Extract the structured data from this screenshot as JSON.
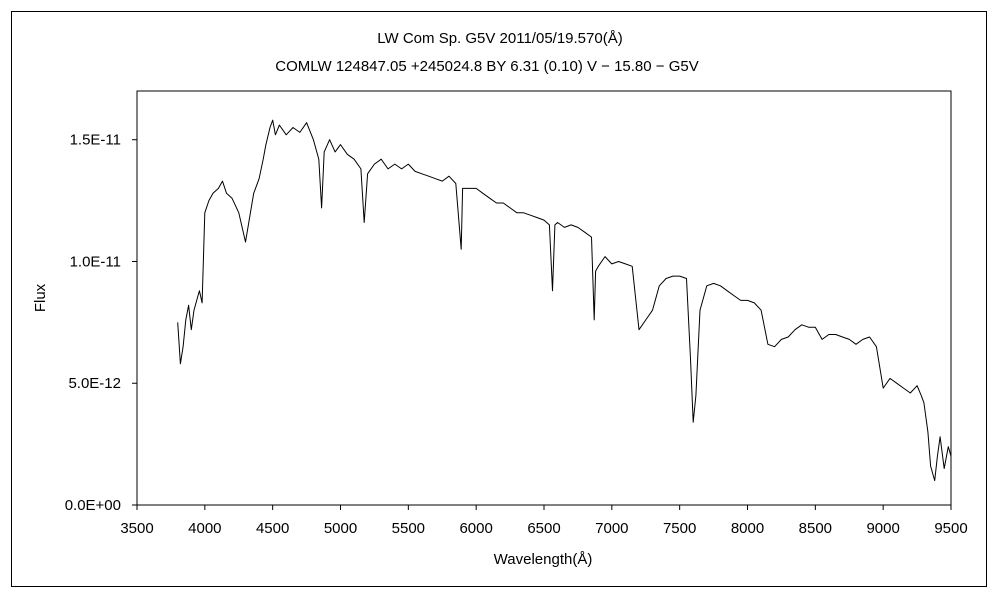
{
  "chart_data": {
    "type": "line",
    "title": "LW Com     Sp. G5V     2011/05/19.570(Å)",
    "subtitle": "COMLW 124847.05 +245024.8 BY 6.31 (0.10) V − 15.80 − G5V",
    "xlabel": "Wavelength(Å)",
    "ylabel": "Flux",
    "xlim": [
      3500,
      9500
    ],
    "ylim": [
      0,
      1.7e-11
    ],
    "grid": false,
    "x_ticks": [
      3500,
      4000,
      4500,
      5000,
      5500,
      6000,
      6500,
      7000,
      7500,
      8000,
      8500,
      9000,
      9500
    ],
    "x_tick_labels": [
      "3500",
      "4000",
      "4500",
      "5000",
      "5500",
      "6000",
      "6500",
      "7000",
      "7500",
      "8000",
      "8500",
      "9000",
      "9500"
    ],
    "y_ticks": [
      0,
      5e-12,
      1e-11,
      1.5e-11
    ],
    "y_tick_labels": [
      "0.0E+00",
      "5.0E-12",
      "1.0E-11",
      "1.5E-11"
    ],
    "series": [
      {
        "color": "#000000",
        "x": [
          3800,
          3820,
          3840,
          3860,
          3880,
          3900,
          3920,
          3940,
          3960,
          3980,
          4000,
          4030,
          4060,
          4100,
          4130,
          4160,
          4200,
          4250,
          4300,
          4330,
          4360,
          4400,
          4430,
          4450,
          4480,
          4500,
          4520,
          4550,
          4600,
          4650,
          4700,
          4750,
          4800,
          4840,
          4861,
          4880,
          4920,
          4960,
          5000,
          5050,
          5100,
          5150,
          5175,
          5200,
          5250,
          5300,
          5350,
          5400,
          5450,
          5500,
          5550,
          5600,
          5650,
          5700,
          5750,
          5800,
          5850,
          5890,
          5900,
          5950,
          6000,
          6050,
          6100,
          6150,
          6200,
          6250,
          6300,
          6350,
          6400,
          6450,
          6500,
          6540,
          6563,
          6580,
          6600,
          6650,
          6700,
          6750,
          6800,
          6850,
          6870,
          6880,
          6900,
          6950,
          7000,
          7050,
          7100,
          7150,
          7200,
          7250,
          7300,
          7350,
          7400,
          7450,
          7500,
          7550,
          7580,
          7600,
          7620,
          7650,
          7700,
          7750,
          7800,
          7850,
          7900,
          7950,
          8000,
          8050,
          8100,
          8150,
          8200,
          8250,
          8300,
          8350,
          8400,
          8450,
          8500,
          8550,
          8600,
          8650,
          8700,
          8750,
          8800,
          8850,
          8900,
          8950,
          9000,
          9050,
          9100,
          9150,
          9200,
          9250,
          9280,
          9300,
          9330,
          9350,
          9380,
          9400,
          9420,
          9450,
          9480,
          9500
        ],
        "y": [
          7.5e-12,
          5.8e-12,
          6.5e-12,
          7.6e-12,
          8.2e-12,
          7.2e-12,
          8e-12,
          8.4e-12,
          8.8e-12,
          8.3e-12,
          1.2e-11,
          1.25e-11,
          1.28e-11,
          1.3e-11,
          1.33e-11,
          1.28e-11,
          1.26e-11,
          1.2e-11,
          1.08e-11,
          1.18e-11,
          1.28e-11,
          1.34e-11,
          1.42e-11,
          1.48e-11,
          1.55e-11,
          1.58e-11,
          1.52e-11,
          1.56e-11,
          1.52e-11,
          1.55e-11,
          1.53e-11,
          1.57e-11,
          1.5e-11,
          1.42e-11,
          1.22e-11,
          1.45e-11,
          1.5e-11,
          1.45e-11,
          1.48e-11,
          1.44e-11,
          1.42e-11,
          1.38e-11,
          1.16e-11,
          1.36e-11,
          1.4e-11,
          1.42e-11,
          1.38e-11,
          1.4e-11,
          1.38e-11,
          1.4e-11,
          1.37e-11,
          1.36e-11,
          1.35e-11,
          1.34e-11,
          1.33e-11,
          1.35e-11,
          1.32e-11,
          1.05e-11,
          1.3e-11,
          1.3e-11,
          1.3e-11,
          1.28e-11,
          1.26e-11,
          1.24e-11,
          1.24e-11,
          1.22e-11,
          1.2e-11,
          1.2e-11,
          1.19e-11,
          1.18e-11,
          1.17e-11,
          1.15e-11,
          8.8e-12,
          1.15e-11,
          1.16e-11,
          1.14e-11,
          1.15e-11,
          1.14e-11,
          1.12e-11,
          1.1e-11,
          7.6e-12,
          9.6e-12,
          9.8e-12,
          1.02e-11,
          9.9e-12,
          1e-11,
          9.9e-12,
          9.8e-12,
          7.2e-12,
          7.6e-12,
          8e-12,
          9e-12,
          9.3e-12,
          9.4e-12,
          9.4e-12,
          9.3e-12,
          6e-12,
          3.4e-12,
          4.5e-12,
          8e-12,
          9e-12,
          9.1e-12,
          9e-12,
          8.8e-12,
          8.6e-12,
          8.4e-12,
          8.4e-12,
          8.3e-12,
          8e-12,
          6.6e-12,
          6.5e-12,
          6.8e-12,
          6.9e-12,
          7.2e-12,
          7.4e-12,
          7.3e-12,
          7.3e-12,
          6.8e-12,
          7e-12,
          7e-12,
          6.9e-12,
          6.8e-12,
          6.6e-12,
          6.8e-12,
          6.9e-12,
          6.5e-12,
          4.8e-12,
          5.2e-12,
          5e-12,
          4.8e-12,
          4.6e-12,
          4.9e-12,
          4.5e-12,
          4.2e-12,
          3e-12,
          1.6e-12,
          1e-12,
          2e-12,
          2.8e-12,
          1.5e-12,
          2.4e-12,
          2e-12
        ]
      }
    ]
  }
}
